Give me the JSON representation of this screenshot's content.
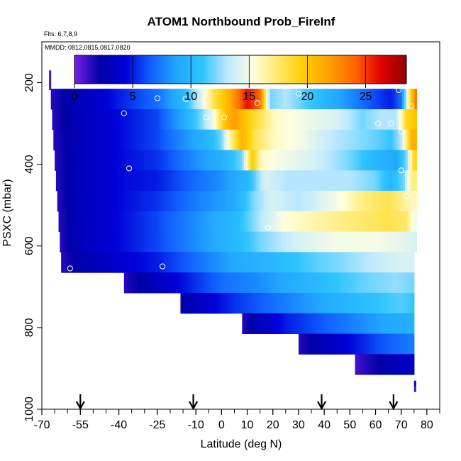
{
  "chart_data": {
    "type": "heatmap",
    "title": "ATOM1 Northbound Prob_FireInf",
    "flights_note": "Flts: 6,7,8,9",
    "dates_note": "MMDD: 0812,0815,0817,0820",
    "xlabel": "Latitude (deg N)",
    "ylabel": "PSXC (mbar)",
    "xlim": [
      -70,
      85
    ],
    "ylim": [
      1000,
      100
    ],
    "x_ticks": [
      -70,
      -55,
      -40,
      -25,
      -10,
      0,
      10,
      20,
      30,
      40,
      50,
      60,
      70,
      80
    ],
    "y_ticks": [
      200,
      400,
      600,
      800,
      1000
    ],
    "colorbar": {
      "min": 0,
      "max": 28.5,
      "ticks": [
        0,
        5,
        10,
        15,
        20,
        25
      ],
      "stops": [
        "#7b1fe8",
        "#0000a8",
        "#0000d8",
        "#1060ff",
        "#22a6ff",
        "#2ec4ff",
        "#bfe9ff",
        "#ffffe0",
        "#ffe866",
        "#ffcc00",
        "#ff9e00",
        "#ff6400",
        "#e00000",
        "#900000"
      ]
    },
    "layers": [
      {
        "p_top": 215,
        "p_bot": 265,
        "x_start": -66.5,
        "x_end": 76,
        "knots": [
          [
            -66.5,
            1.5
          ],
          [
            -55,
            3
          ],
          [
            -40,
            5
          ],
          [
            -25,
            7
          ],
          [
            -15,
            10
          ],
          [
            -8,
            14
          ],
          [
            -3,
            18
          ],
          [
            3,
            21
          ],
          [
            10,
            26
          ],
          [
            15,
            24
          ],
          [
            19,
            12
          ],
          [
            25,
            13
          ],
          [
            35,
            11
          ],
          [
            50,
            8
          ],
          [
            60,
            6
          ],
          [
            66,
            5
          ],
          [
            70,
            7
          ],
          [
            74,
            20
          ],
          [
            76,
            24
          ]
        ]
      },
      {
        "p_top": 265,
        "p_bot": 315,
        "x_start": -66,
        "x_end": 76,
        "knots": [
          [
            -66,
            1.5
          ],
          [
            -55,
            3
          ],
          [
            -40,
            4.5
          ],
          [
            -25,
            6
          ],
          [
            -15,
            9
          ],
          [
            -8,
            12
          ],
          [
            -3,
            15
          ],
          [
            1,
            20
          ],
          [
            5,
            22
          ],
          [
            12,
            19
          ],
          [
            20,
            16
          ],
          [
            30,
            15
          ],
          [
            45,
            14
          ],
          [
            55,
            12
          ],
          [
            62,
            13
          ],
          [
            68,
            13
          ],
          [
            72,
            19
          ],
          [
            75,
            20
          ]
        ]
      },
      {
        "p_top": 315,
        "p_bot": 365,
        "x_start": -65.5,
        "x_end": 76,
        "knots": [
          [
            -65.5,
            1.5
          ],
          [
            -55,
            3
          ],
          [
            -40,
            4.5
          ],
          [
            -25,
            6
          ],
          [
            -15,
            8
          ],
          [
            -5,
            10
          ],
          [
            0,
            12
          ],
          [
            3,
            16
          ],
          [
            8,
            21
          ],
          [
            13,
            18
          ],
          [
            20,
            16
          ],
          [
            30,
            15
          ],
          [
            45,
            13
          ],
          [
            58,
            12
          ],
          [
            66,
            11
          ],
          [
            70,
            13
          ],
          [
            74,
            21
          ]
        ]
      },
      {
        "p_top": 365,
        "p_bot": 415,
        "x_start": -65,
        "x_end": 76,
        "knots": [
          [
            -65,
            1.5
          ],
          [
            -55,
            3
          ],
          [
            -40,
            4.5
          ],
          [
            -25,
            5.5
          ],
          [
            -10,
            8
          ],
          [
            0,
            9.5
          ],
          [
            8,
            12
          ],
          [
            12,
            20
          ],
          [
            15,
            16
          ],
          [
            22,
            15
          ],
          [
            35,
            14
          ],
          [
            50,
            12
          ],
          [
            60,
            10
          ],
          [
            68,
            9
          ],
          [
            72,
            12
          ],
          [
            75,
            19
          ]
        ]
      },
      {
        "p_top": 415,
        "p_bot": 465,
        "x_start": -64.5,
        "x_end": 76,
        "knots": [
          [
            -64.5,
            1.5
          ],
          [
            -55,
            3
          ],
          [
            -40,
            4.5
          ],
          [
            -25,
            5
          ],
          [
            -10,
            7
          ],
          [
            0,
            8
          ],
          [
            10,
            10
          ],
          [
            17,
            14
          ],
          [
            25,
            13
          ],
          [
            40,
            13
          ],
          [
            50,
            13
          ],
          [
            60,
            12
          ],
          [
            66,
            10
          ],
          [
            71,
            12
          ],
          [
            74,
            17
          ]
        ]
      },
      {
        "p_top": 465,
        "p_bot": 515,
        "x_start": -64,
        "x_end": 76,
        "knots": [
          [
            -64,
            1.5
          ],
          [
            -55,
            3
          ],
          [
            -40,
            4.5
          ],
          [
            -25,
            5.5
          ],
          [
            -10,
            7.5
          ],
          [
            5,
            9
          ],
          [
            12,
            12
          ],
          [
            20,
            14
          ],
          [
            30,
            13
          ],
          [
            45,
            15
          ],
          [
            55,
            17
          ],
          [
            65,
            18
          ],
          [
            70,
            17
          ],
          [
            74,
            16
          ]
        ]
      },
      {
        "p_top": 515,
        "p_bot": 565,
        "x_start": -63.5,
        "x_end": 76,
        "knots": [
          [
            -63.5,
            1.5
          ],
          [
            -55,
            3
          ],
          [
            -40,
            4.5
          ],
          [
            -25,
            6
          ],
          [
            -10,
            8
          ],
          [
            5,
            10
          ],
          [
            15,
            13
          ],
          [
            25,
            15.5
          ],
          [
            40,
            16.5
          ],
          [
            55,
            17.5
          ],
          [
            65,
            18
          ],
          [
            72,
            17.5
          ],
          [
            75,
            15
          ]
        ]
      },
      {
        "p_top": 565,
        "p_bot": 615,
        "x_start": -63,
        "x_end": 76,
        "knots": [
          [
            -63,
            1.5
          ],
          [
            -55,
            3
          ],
          [
            -40,
            4.5
          ],
          [
            -25,
            6
          ],
          [
            -10,
            8
          ],
          [
            5,
            10
          ],
          [
            15,
            12
          ],
          [
            30,
            14
          ],
          [
            45,
            15
          ],
          [
            60,
            15
          ],
          [
            70,
            14.5
          ],
          [
            75,
            14
          ]
        ]
      },
      {
        "p_top": 615,
        "p_bot": 665,
        "x_start": -62.5,
        "x_end": 75,
        "knots": [
          [
            -62.5,
            1.5
          ],
          [
            -55,
            2.5
          ],
          [
            -40,
            4
          ],
          [
            -25,
            5
          ],
          [
            -10,
            7
          ],
          [
            5,
            9
          ],
          [
            20,
            10
          ],
          [
            35,
            11.5
          ],
          [
            50,
            12.5
          ],
          [
            62,
            13.5
          ],
          [
            70,
            14
          ],
          [
            75,
            14
          ]
        ]
      },
      {
        "p_top": 665,
        "p_bot": 715,
        "x_start": -38,
        "x_end": 75,
        "knots": [
          [
            -38,
            1.5
          ],
          [
            -30,
            2.5
          ],
          [
            -20,
            4
          ],
          [
            -10,
            5.5
          ],
          [
            0,
            7
          ],
          [
            15,
            8
          ],
          [
            30,
            9.5
          ],
          [
            45,
            11
          ],
          [
            58,
            12
          ],
          [
            68,
            12.5
          ],
          [
            75,
            12
          ]
        ]
      },
      {
        "p_top": 715,
        "p_bot": 765,
        "x_start": -16,
        "x_end": 75,
        "knots": [
          [
            -16,
            2
          ],
          [
            -5,
            4
          ],
          [
            5,
            5.5
          ],
          [
            20,
            7
          ],
          [
            35,
            8.5
          ],
          [
            50,
            10
          ],
          [
            62,
            11
          ],
          [
            70,
            11.5
          ],
          [
            75,
            11
          ]
        ]
      },
      {
        "p_top": 765,
        "p_bot": 815,
        "x_start": 8,
        "x_end": 75,
        "knots": [
          [
            8,
            1.5
          ],
          [
            15,
            3
          ],
          [
            25,
            5
          ],
          [
            40,
            6.5
          ],
          [
            55,
            8
          ],
          [
            65,
            9
          ],
          [
            75,
            9.5
          ]
        ]
      },
      {
        "p_top": 815,
        "p_bot": 865,
        "x_start": 30,
        "x_end": 75,
        "knots": [
          [
            30,
            1.5
          ],
          [
            40,
            3
          ],
          [
            50,
            4.5
          ],
          [
            60,
            6
          ],
          [
            70,
            7
          ],
          [
            75,
            7.5
          ]
        ]
      },
      {
        "p_top": 865,
        "p_bot": 915,
        "x_start": 52,
        "x_end": 75,
        "knots": [
          [
            52,
            1
          ],
          [
            60,
            2
          ],
          [
            68,
            3
          ],
          [
            75,
            3.5
          ]
        ]
      }
    ],
    "slivers": [
      {
        "x": -67.2,
        "p_top": 170,
        "p_bot": 218,
        "value": 1
      },
      {
        "x": 75.0,
        "p_top": 930,
        "p_bot": 945,
        "value": 2
      },
      {
        "x": 75.0,
        "p_top": 945,
        "p_bot": 958,
        "value": 1
      }
    ],
    "markers": [
      {
        "lat": -25,
        "p": 238
      },
      {
        "lat": -14,
        "p": 240
      },
      {
        "lat": -38,
        "p": 275
      },
      {
        "lat": -6,
        "p": 285
      },
      {
        "lat": 1,
        "p": 285
      },
      {
        "lat": 14,
        "p": 250
      },
      {
        "lat": 30,
        "p": 227
      },
      {
        "lat": 61,
        "p": 300
      },
      {
        "lat": 66,
        "p": 300
      },
      {
        "lat": 69,
        "p": 218
      },
      {
        "lat": 70,
        "p": 320
      },
      {
        "lat": 74,
        "p": 258
      },
      {
        "lat": -36,
        "p": 410
      },
      {
        "lat": 70,
        "p": 415
      },
      {
        "lat": 72,
        "p": 478
      },
      {
        "lat": 18,
        "p": 555
      },
      {
        "lat": -23,
        "p": 650
      },
      {
        "lat": -59,
        "p": 655
      }
    ],
    "arrows": [
      -55,
      -11,
      39,
      67
    ]
  }
}
